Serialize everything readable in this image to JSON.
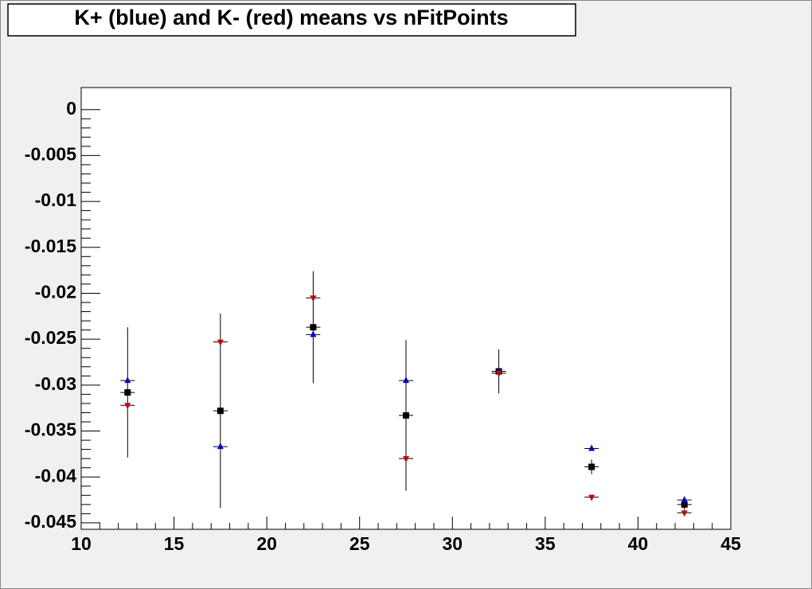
{
  "chart_data": {
    "type": "scatter",
    "title": "K+ (blue) and K- (red) means vs nFitPoints",
    "x": [
      12.5,
      17.5,
      22.5,
      27.5,
      32.5,
      37.5,
      42.5
    ],
    "series": [
      {
        "color": "#000000",
        "marker": "square",
        "values": [
          -0.0308,
          -0.0328,
          -0.0237,
          -0.0333,
          -0.0285,
          -0.0389,
          -0.043
        ],
        "errors": [
          0.0071,
          0.0106,
          0.0061,
          0.0082,
          0.0024,
          0.0008,
          0.0006
        ]
      },
      {
        "color": "#0000cc",
        "marker": "triangle-up",
        "values": [
          -0.0295,
          -0.0367,
          -0.0245,
          -0.0295,
          -0.0285,
          -0.0369,
          -0.0425
        ]
      },
      {
        "color": "#cc0000",
        "marker": "triangle-down",
        "values": [
          -0.0322,
          -0.0253,
          -0.0205,
          -0.038,
          -0.0287,
          -0.0422,
          -0.0439
        ]
      }
    ],
    "xlim": [
      10,
      45
    ],
    "ylim": [
      -0.0457,
      0.0024
    ],
    "xticks": [
      10,
      15,
      20,
      25,
      30,
      35,
      40,
      45
    ],
    "yticks": [
      0,
      -0.005,
      -0.01,
      -0.015,
      -0.02,
      -0.025,
      -0.03,
      -0.035,
      -0.04,
      -0.045
    ]
  }
}
